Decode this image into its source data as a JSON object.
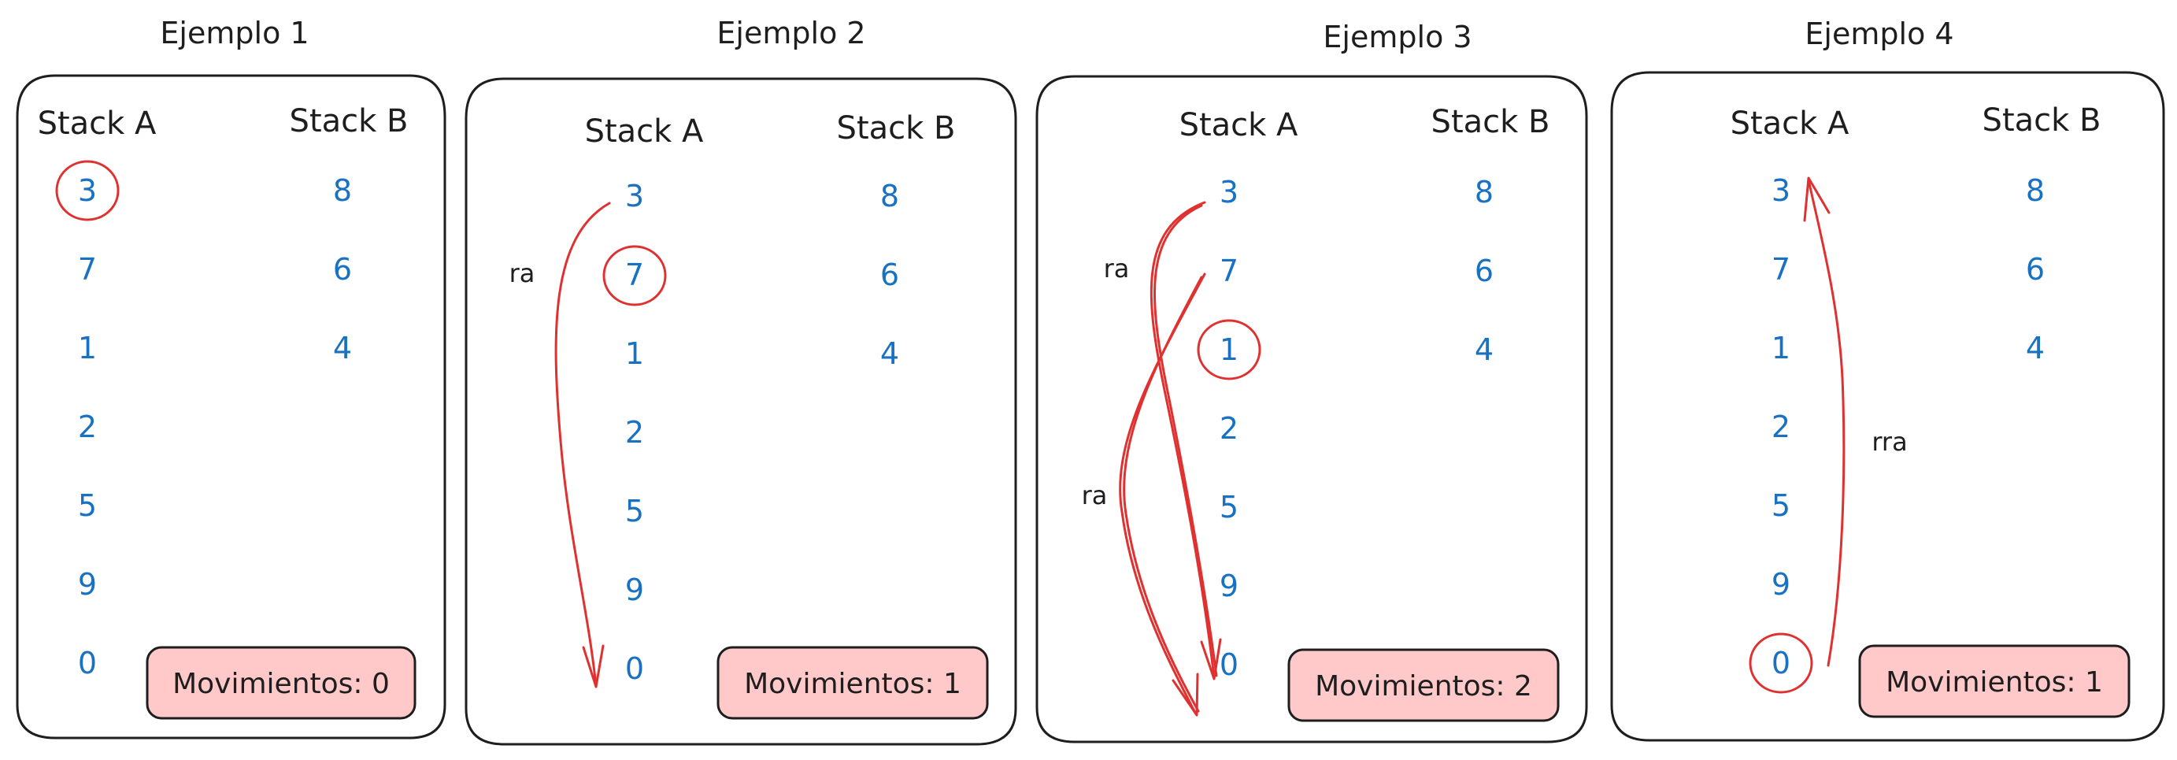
{
  "colors": {
    "ink": "#1e1e1e",
    "number": "#1971c2",
    "highlight": "#e03131",
    "moves_fill": "#ffc9c9"
  },
  "examples": [
    {
      "title": "Ejemplo 1",
      "stack_a_label": "Stack A",
      "stack_b_label": "Stack B",
      "stack_a": [
        "3",
        "7",
        "1",
        "2",
        "5",
        "9",
        "0"
      ],
      "stack_b": [
        "8",
        "6",
        "4"
      ],
      "circled_value": "3",
      "moves_label": "Movimientos: 0",
      "ops": []
    },
    {
      "title": "Ejemplo 2",
      "stack_a_label": "Stack A",
      "stack_b_label": "Stack B",
      "stack_a": [
        "3",
        "7",
        "1",
        "2",
        "5",
        "9",
        "0"
      ],
      "stack_b": [
        "8",
        "6",
        "4"
      ],
      "circled_value": "7",
      "moves_label": "Movimientos: 1",
      "ops": [
        "ra"
      ]
    },
    {
      "title": "Ejemplo 3",
      "stack_a_label": "Stack A",
      "stack_b_label": "Stack B",
      "stack_a": [
        "3",
        "7",
        "1",
        "2",
        "5",
        "9",
        "0"
      ],
      "stack_b": [
        "8",
        "6",
        "4"
      ],
      "circled_value": "1",
      "moves_label": "Movimientos: 2",
      "ops": [
        "ra",
        "ra"
      ]
    },
    {
      "title": "Ejemplo 4",
      "stack_a_label": "Stack A",
      "stack_b_label": "Stack B",
      "stack_a": [
        "3",
        "7",
        "1",
        "2",
        "5",
        "9",
        "0"
      ],
      "stack_b": [
        "8",
        "6",
        "4"
      ],
      "circled_value": "0",
      "moves_label": "Movimientos: 1",
      "ops": [
        "rra"
      ]
    }
  ]
}
